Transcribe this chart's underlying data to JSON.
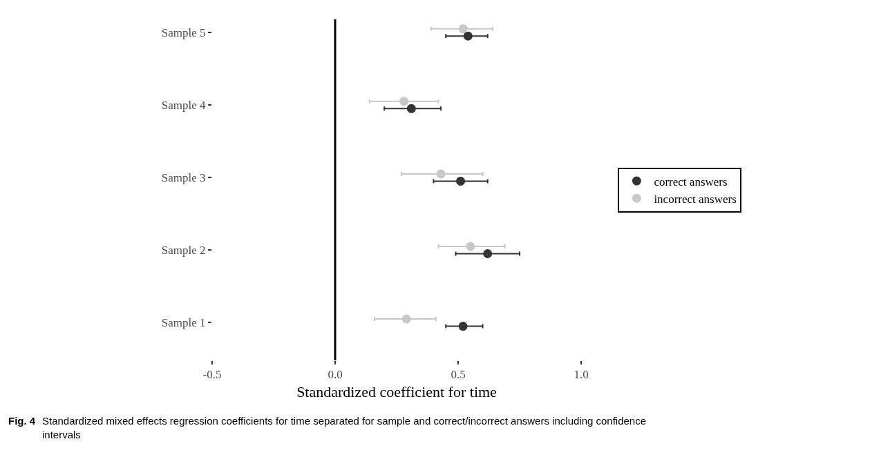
{
  "chart_data": {
    "type": "scatter",
    "orientation": "horizontal",
    "xlabel": "Standardized coefficient for time",
    "categories": [
      "Sample 5",
      "Sample 4",
      "Sample 3",
      "Sample 2",
      "Sample 1"
    ],
    "series": [
      {
        "name": "correct answers",
        "color": "#333333",
        "values": [
          0.54,
          0.31,
          0.51,
          0.62,
          0.52
        ],
        "errors": [
          [
            0.45,
            0.62
          ],
          [
            0.2,
            0.43
          ],
          [
            0.4,
            0.62
          ],
          [
            0.49,
            0.75
          ],
          [
            0.45,
            0.6
          ]
        ]
      },
      {
        "name": "incorrect answers",
        "color": "#c8c8c8",
        "values": [
          0.52,
          0.28,
          0.43,
          0.55,
          0.29
        ],
        "errors": [
          [
            0.39,
            0.64
          ],
          [
            0.14,
            0.42
          ],
          [
            0.27,
            0.6
          ],
          [
            0.42,
            0.69
          ],
          [
            0.16,
            0.41
          ]
        ]
      }
    ],
    "xlim": [
      -0.5,
      1.0
    ],
    "xticks": [
      {
        "value": -0.5,
        "label": "-0.5"
      },
      {
        "value": 0,
        "label": "0.0"
      },
      {
        "value": 0.5,
        "label": "0.5"
      },
      {
        "value": 1,
        "label": "1.0"
      }
    ],
    "ref_lines": [
      {
        "axis": "x",
        "value": 0,
        "color": "#000000"
      }
    ],
    "marker": "circle",
    "grid": false,
    "legend": "right",
    "annotations": [
      "Fig. 4",
      "Standardized mixed effects regression coefficients for time separated for sample and correct/incorrect answers including confidence intervals"
    ]
  }
}
